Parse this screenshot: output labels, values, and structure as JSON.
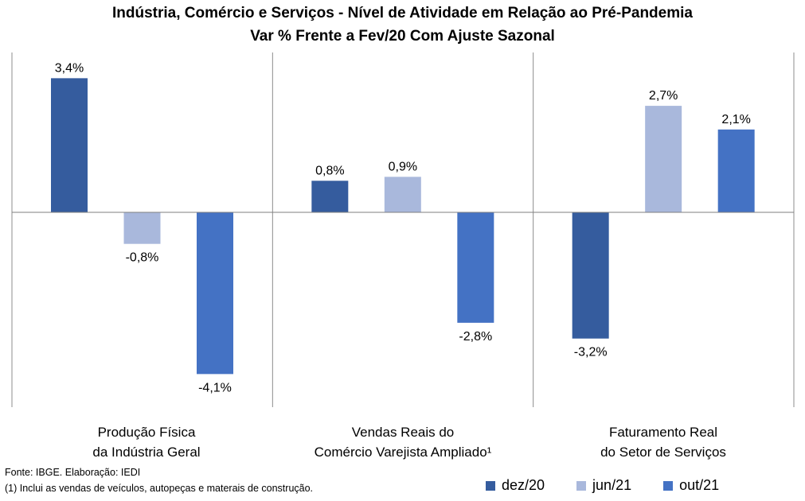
{
  "chart_data": {
    "type": "bar",
    "title": "Indústria, Comércio e Serviços - Nível de Atividade em Relação ao Pré-Pandemia",
    "subtitle": "Var % Frente a Fev/20 Com Ajuste Sazonal",
    "categories": [
      [
        "Produção Física",
        "da Indústria Geral"
      ],
      [
        "Vendas Reais do",
        "Comércio Varejista Ampliado¹"
      ],
      [
        "Faturamento Real",
        "do Setor de Serviços"
      ]
    ],
    "series": [
      {
        "name": "dez/20",
        "color": "#355c9e",
        "values": [
          3.4,
          0.8,
          -3.2
        ],
        "labels": [
          "3,4%",
          "0,8%",
          "-3,2%"
        ]
      },
      {
        "name": "jun/21",
        "color": "#a9b8dc",
        "values": [
          -0.8,
          0.9,
          2.7
        ],
        "labels": [
          "-0,8%",
          "0,9%",
          "2,7%"
        ]
      },
      {
        "name": "out/21",
        "color": "#4472c4",
        "values": [
          -4.1,
          -2.8,
          2.1
        ],
        "labels": [
          "-4,1%",
          "-2,8%",
          "2,1%"
        ]
      }
    ],
    "ylim": [
      -5,
      4
    ],
    "grid": false,
    "legend": "bottom-right"
  },
  "footer": {
    "source": "Fonte: IBGE. Elaboração: IEDI",
    "note": "(1) Inclui as vendas de veículos, autopeças e materais de construção."
  }
}
